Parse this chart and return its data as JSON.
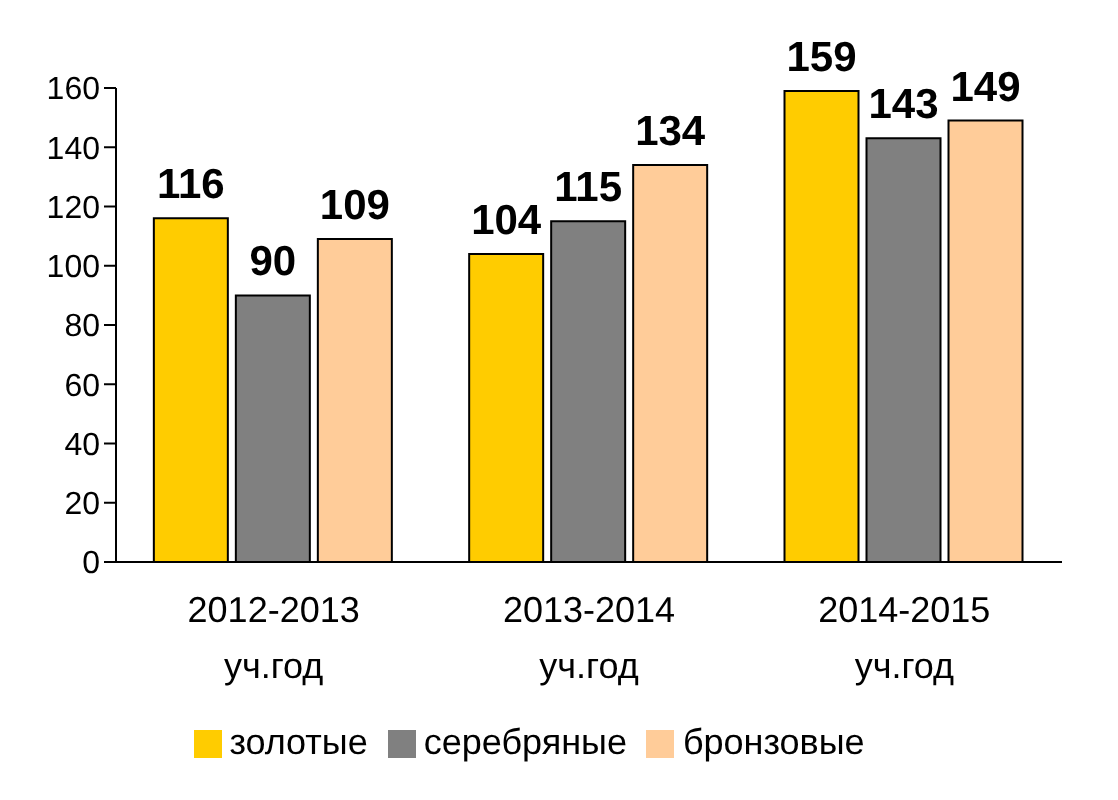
{
  "chart_data": {
    "type": "bar",
    "categories": [
      "2012-2013 уч.год",
      "2013-2014 уч.год",
      "2014-2015 уч.год"
    ],
    "series": [
      {
        "name": "золотые",
        "color": "#ffcc00",
        "values": [
          116,
          104,
          159
        ]
      },
      {
        "name": "серебряные",
        "color": "#808080",
        "values": [
          90,
          115,
          143
        ]
      },
      {
        "name": "бронзовые",
        "color": "#ffcc99",
        "values": [
          109,
          134,
          149
        ]
      }
    ],
    "ylim": [
      0,
      160
    ],
    "yticks": [
      0,
      20,
      40,
      60,
      80,
      100,
      120,
      140,
      160
    ],
    "grid": false,
    "legend": "bottom",
    "data_labels": true
  }
}
